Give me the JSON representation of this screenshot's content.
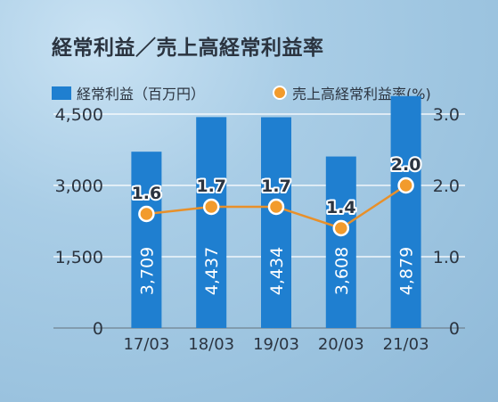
{
  "colors": {
    "bar": "#1f7fd0",
    "line": "#e8902a",
    "marker_fill": "#f29b2c",
    "marker_stroke": "#ffffff",
    "text": "#2b3440",
    "label_bg": "#ffffff"
  },
  "chart_data": {
    "type": "bar",
    "title": "経常利益／売上高経常利益率",
    "categories": [
      "17/03",
      "18/03",
      "19/03",
      "20/03",
      "21/03"
    ],
    "series": [
      {
        "name": "経常利益（百万円）",
        "type": "bar",
        "axis": "left",
        "values": [
          3709,
          4437,
          4434,
          3608,
          4879
        ],
        "labels": [
          "3,709",
          "4,437",
          "4,434",
          "3,608",
          "4,879"
        ]
      },
      {
        "name": "売上高経常利益率(%)",
        "type": "line",
        "axis": "right",
        "values": [
          1.6,
          1.7,
          1.7,
          1.4,
          2.0
        ],
        "labels": [
          "1.6",
          "1.7",
          "1.7",
          "1.4",
          "2.0"
        ]
      }
    ],
    "y_left": {
      "ylim": [
        0,
        4500
      ],
      "ticks": [
        0,
        1500,
        3000,
        4500
      ],
      "tick_labels": [
        "0",
        "1,500",
        "3,000",
        "4,500"
      ]
    },
    "y_right": {
      "ylim": [
        0,
        3.0
      ],
      "ticks": [
        0,
        1.0,
        2.0,
        3.0
      ],
      "tick_labels": [
        "0",
        "1.0",
        "2.0",
        "3.0"
      ]
    },
    "grid": true,
    "legend": "top"
  }
}
